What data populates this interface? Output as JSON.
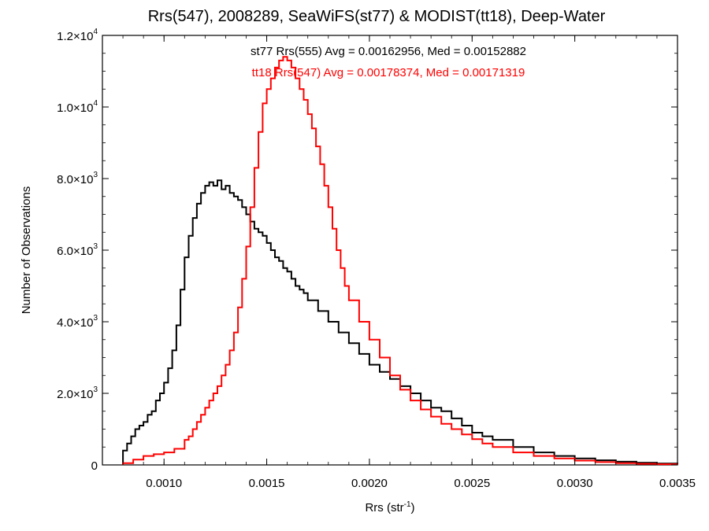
{
  "chart_data": {
    "type": "line",
    "title": "Rrs(547), 2008289, SeaWiFS(st77) & MODIST(tt18), Deep-Water",
    "xlabel": "Rrs (str",
    "xlabel_sup": "-1",
    "xlabel_suffix": ")",
    "ylabel": "Number of Observations",
    "xlim": [
      0.0007,
      0.0035
    ],
    "ylim": [
      0,
      12000
    ],
    "x_ticks": [
      {
        "value": 0.001,
        "label": "0.0010"
      },
      {
        "value": 0.0015,
        "label": "0.0015"
      },
      {
        "value": 0.002,
        "label": "0.0020"
      },
      {
        "value": 0.0025,
        "label": "0.0025"
      },
      {
        "value": 0.003,
        "label": "0.0030"
      },
      {
        "value": 0.0035,
        "label": "0.0035"
      }
    ],
    "y_ticks": [
      {
        "value": 0,
        "mant": "0",
        "exp": ""
      },
      {
        "value": 2000,
        "mant": "2.0×10",
        "exp": "3"
      },
      {
        "value": 4000,
        "mant": "4.0×10",
        "exp": "3"
      },
      {
        "value": 6000,
        "mant": "6.0×10",
        "exp": "3"
      },
      {
        "value": 8000,
        "mant": "8.0×10",
        "exp": "3"
      },
      {
        "value": 10000,
        "mant": "1.0×10",
        "exp": "4"
      },
      {
        "value": 12000,
        "mant": "1.2×10",
        "exp": "4"
      }
    ],
    "annotations": [
      {
        "text": "st77 Rrs(555) Avg = 0.00162956, Med = 0.00152882",
        "color": "#000000"
      },
      {
        "text": "tt18 Rrs(547) Avg = 0.00178374, Med = 0.00171319",
        "color": "#ff0000"
      }
    ],
    "series": [
      {
        "color": "#000000",
        "style": "step",
        "x": [
          0.0008,
          0.00082,
          0.00084,
          0.00086,
          0.00088,
          0.0009,
          0.00092,
          0.00094,
          0.00096,
          0.00098,
          0.001,
          0.00102,
          0.00104,
          0.00106,
          0.00108,
          0.0011,
          0.00112,
          0.00114,
          0.00116,
          0.00118,
          0.0012,
          0.00122,
          0.00124,
          0.00126,
          0.00128,
          0.0013,
          0.00132,
          0.00134,
          0.00136,
          0.00138,
          0.0014,
          0.00142,
          0.00144,
          0.00146,
          0.00148,
          0.0015,
          0.00152,
          0.00154,
          0.00156,
          0.00158,
          0.0016,
          0.00162,
          0.00164,
          0.00166,
          0.00168,
          0.0017,
          0.00175,
          0.0018,
          0.00185,
          0.0019,
          0.00195,
          0.002,
          0.00205,
          0.0021,
          0.00215,
          0.0022,
          0.00225,
          0.0023,
          0.00235,
          0.0024,
          0.00245,
          0.0025,
          0.00255,
          0.0026,
          0.0027,
          0.0028,
          0.0029,
          0.003,
          0.0031,
          0.0032,
          0.0033,
          0.0034,
          0.0035
        ],
        "values": [
          400,
          600,
          800,
          1000,
          1100,
          1200,
          1400,
          1500,
          1800,
          2000,
          2300,
          2700,
          3200,
          3900,
          4900,
          5800,
          6400,
          6900,
          7300,
          7600,
          7800,
          7900,
          7800,
          7950,
          7700,
          7800,
          7600,
          7500,
          7400,
          7200,
          7000,
          6800,
          6600,
          6500,
          6400,
          6200,
          6000,
          5800,
          5700,
          5500,
          5400,
          5200,
          5000,
          4900,
          4800,
          4600,
          4300,
          4000,
          3700,
          3400,
          3100,
          2800,
          2600,
          2400,
          2200,
          2000,
          1800,
          1600,
          1500,
          1300,
          1100,
          900,
          800,
          700,
          500,
          350,
          250,
          180,
          130,
          90,
          60,
          40,
          20
        ]
      },
      {
        "color": "#ff0000",
        "style": "step",
        "x": [
          0.0008,
          0.00085,
          0.0009,
          0.00095,
          0.001,
          0.00105,
          0.0011,
          0.00112,
          0.00114,
          0.00116,
          0.00118,
          0.0012,
          0.00122,
          0.00124,
          0.00126,
          0.00128,
          0.0013,
          0.00132,
          0.00134,
          0.00136,
          0.00138,
          0.0014,
          0.00142,
          0.00144,
          0.00146,
          0.00148,
          0.0015,
          0.00152,
          0.00154,
          0.00156,
          0.00158,
          0.0016,
          0.00162,
          0.00164,
          0.00166,
          0.00168,
          0.0017,
          0.00172,
          0.00174,
          0.00176,
          0.00178,
          0.0018,
          0.00182,
          0.00184,
          0.00186,
          0.00188,
          0.0019,
          0.00195,
          0.002,
          0.00205,
          0.0021,
          0.00215,
          0.0022,
          0.00225,
          0.0023,
          0.00235,
          0.0024,
          0.00245,
          0.0025,
          0.00255,
          0.0026,
          0.0027,
          0.0028,
          0.0029,
          0.003,
          0.0031,
          0.0032,
          0.0033,
          0.0034,
          0.0035
        ],
        "values": [
          50,
          150,
          250,
          300,
          350,
          450,
          700,
          800,
          1000,
          1200,
          1400,
          1600,
          1800,
          2000,
          2200,
          2500,
          2800,
          3200,
          3700,
          4400,
          5200,
          6100,
          7200,
          8300,
          9300,
          10100,
          10500,
          10800,
          11100,
          11300,
          11400,
          11300,
          11100,
          10800,
          10500,
          10200,
          9800,
          9400,
          8900,
          8400,
          7800,
          7200,
          6600,
          6000,
          5500,
          5000,
          4600,
          4000,
          3500,
          3000,
          2500,
          2100,
          1800,
          1550,
          1350,
          1150,
          1000,
          850,
          720,
          600,
          500,
          350,
          250,
          180,
          120,
          80,
          50,
          30,
          20,
          10
        ]
      }
    ]
  }
}
